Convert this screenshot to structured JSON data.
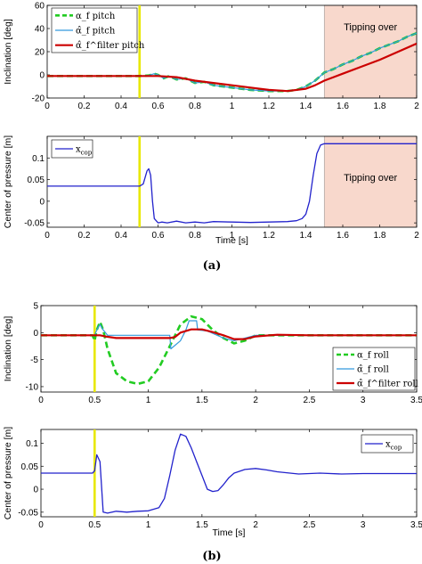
{
  "chart_data": [
    {
      "id": "a_top",
      "type": "line",
      "ylabel": "Inclination [deg]",
      "xlim": [
        0,
        2
      ],
      "ylim": [
        -20,
        60
      ],
      "xticks": [
        "0",
        "0.2",
        "0.4",
        "0.6",
        "0.8",
        "1",
        "1.2",
        "1.4",
        "1.6",
        "1.8",
        "2"
      ],
      "xtick_values": [
        0,
        0.2,
        0.4,
        0.6,
        0.8,
        1,
        1.2,
        1.4,
        1.6,
        1.8,
        2
      ],
      "yticks": [
        "-20",
        "0",
        "20",
        "40",
        "60"
      ],
      "ytick_values": [
        -20,
        0,
        20,
        40,
        60
      ],
      "vline": 0.5,
      "shaded": [
        1.5,
        2
      ],
      "annotation": "Tipping over",
      "legend": [
        {
          "label": "α_f pitch",
          "color": "#22cc22",
          "style": "dashed"
        },
        {
          "label": "α̂_f pitch",
          "color": "#3399dd",
          "style": "solid"
        },
        {
          "label": "α̂_f^filter pitch",
          "color": "#cc0000",
          "style": "solid"
        }
      ],
      "series": [
        {
          "color": "#22cc22",
          "dash": "7,4",
          "width": 2.6,
          "x": [
            0,
            0.5,
            0.55,
            0.58,
            0.6,
            0.63,
            0.66,
            0.7,
            0.75,
            0.8,
            0.85,
            0.9,
            1.0,
            1.1,
            1.2,
            1.3,
            1.35,
            1.4,
            1.45,
            1.5,
            1.55,
            1.6,
            1.65,
            1.7,
            1.75,
            1.8,
            1.85,
            1.9,
            1.95,
            2.0
          ],
          "y": [
            -1,
            -1,
            -0.5,
            1,
            0,
            -3,
            -1,
            -4,
            -3,
            -7,
            -6,
            -9,
            -11,
            -13,
            -14,
            -14,
            -13,
            -10,
            -5,
            2,
            5,
            9,
            12,
            16,
            19,
            23,
            26,
            29,
            33,
            36
          ]
        },
        {
          "color": "#3399dd",
          "dash": "",
          "width": 1.2,
          "x": [
            0,
            0.5,
            0.55,
            0.58,
            0.6,
            0.63,
            0.66,
            0.7,
            0.75,
            0.8,
            0.85,
            0.9,
            1.0,
            1.1,
            1.2,
            1.3,
            1.35,
            1.4,
            1.45,
            1.5,
            1.55,
            1.6,
            1.65,
            1.7,
            1.75,
            1.8,
            1.85,
            1.9,
            1.95,
            2.0
          ],
          "y": [
            -1,
            -1,
            -0.5,
            1,
            0,
            -3,
            -1,
            -4,
            -3,
            -7,
            -6,
            -9,
            -11,
            -13,
            -14,
            -14,
            -13,
            -10,
            -5,
            2,
            5,
            9,
            12,
            16,
            19,
            23,
            26,
            29,
            33,
            36
          ]
        },
        {
          "color": "#cc0000",
          "dash": "",
          "width": 2.2,
          "x": [
            0,
            0.55,
            0.6,
            0.7,
            0.8,
            0.9,
            1.0,
            1.1,
            1.2,
            1.3,
            1.4,
            1.45,
            1.5,
            1.55,
            1.6,
            1.7,
            1.8,
            1.9,
            2.0
          ],
          "y": [
            -1,
            -1,
            -1,
            -2,
            -5,
            -7,
            -9,
            -11,
            -13,
            -14,
            -12,
            -9,
            -5,
            -2,
            1,
            7,
            13,
            20,
            27
          ]
        }
      ]
    },
    {
      "id": "a_bottom",
      "type": "line",
      "ylabel": "Center of pressure [m]",
      "xlabel": "Time [s]",
      "xlim": [
        0,
        2
      ],
      "ylim": [
        -0.06,
        0.15
      ],
      "xticks": [
        "0",
        "0.2",
        "0.4",
        "0.6",
        "0.8",
        "1",
        "1.2",
        "1.4",
        "1.6",
        "1.8",
        "2"
      ],
      "xtick_values": [
        0,
        0.2,
        0.4,
        0.6,
        0.8,
        1,
        1.2,
        1.4,
        1.6,
        1.8,
        2
      ],
      "yticks": [
        "-0.05",
        "0",
        "0.05",
        "0.1"
      ],
      "ytick_values": [
        -0.05,
        0,
        0.05,
        0.1
      ],
      "vline": 0.5,
      "shaded": [
        1.5,
        2
      ],
      "annotation": "Tipping over",
      "legend": [
        {
          "label": "x",
          "sub": "cop",
          "color": "#2222cc",
          "style": "solid"
        }
      ],
      "series": [
        {
          "color": "#2222cc",
          "dash": "",
          "width": 1.3,
          "x": [
            0,
            0.5,
            0.52,
            0.54,
            0.55,
            0.56,
            0.57,
            0.58,
            0.6,
            0.62,
            0.65,
            0.7,
            0.75,
            0.8,
            0.85,
            0.9,
            1.0,
            1.1,
            1.2,
            1.3,
            1.35,
            1.38,
            1.4,
            1.42,
            1.44,
            1.46,
            1.48,
            1.5,
            1.6,
            1.8,
            2.0
          ],
          "y": [
            0.035,
            0.035,
            0.04,
            0.07,
            0.075,
            0.06,
            0.0,
            -0.04,
            -0.05,
            -0.048,
            -0.05,
            -0.046,
            -0.05,
            -0.048,
            -0.05,
            -0.047,
            -0.048,
            -0.049,
            -0.048,
            -0.047,
            -0.045,
            -0.04,
            -0.03,
            0.0,
            0.06,
            0.11,
            0.13,
            0.133,
            0.133,
            0.133,
            0.133
          ]
        }
      ]
    },
    {
      "id": "b_top",
      "type": "line",
      "ylabel": "Inclination [deg]",
      "xlim": [
        0,
        3.5
      ],
      "ylim": [
        -11,
        5
      ],
      "xticks": [
        "0",
        "0.5",
        "1",
        "1.5",
        "2",
        "2.5",
        "3",
        "3.5"
      ],
      "xtick_values": [
        0,
        0.5,
        1,
        1.5,
        2,
        2.5,
        3,
        3.5
      ],
      "yticks": [
        "-10",
        "-5",
        "0",
        "5"
      ],
      "ytick_values": [
        -10,
        -5,
        0,
        5
      ],
      "vline": 0.5,
      "legend": [
        {
          "label": "α_f roll",
          "color": "#22cc22",
          "style": "dashed"
        },
        {
          "label": "α̂_f roll",
          "color": "#3399dd",
          "style": "solid"
        },
        {
          "label": "α̂_f^filter roll",
          "color": "#cc0000",
          "style": "solid"
        }
      ],
      "series": [
        {
          "color": "#22cc22",
          "dash": "7,4",
          "width": 2.6,
          "x": [
            0,
            0.48,
            0.5,
            0.52,
            0.55,
            0.58,
            0.62,
            0.7,
            0.8,
            0.9,
            1.0,
            1.1,
            1.2,
            1.3,
            1.4,
            1.5,
            1.6,
            1.7,
            1.8,
            1.9,
            2.0,
            2.2,
            2.5,
            3.0,
            3.5
          ],
          "y": [
            -0.5,
            -0.5,
            -1.5,
            0.5,
            2,
            0.5,
            -3,
            -7.5,
            -9,
            -9.5,
            -9,
            -6.5,
            -2.5,
            1.5,
            3,
            2.5,
            0.5,
            -1,
            -2,
            -1.5,
            -0.5,
            -0.5,
            -0.5,
            -0.5,
            -0.5
          ]
        },
        {
          "color": "#3399dd",
          "dash": "",
          "width": 1.2,
          "x": [
            0,
            0.5,
            0.52,
            0.55,
            0.58,
            0.62,
            1.2,
            1.21,
            1.3,
            1.35,
            1.38,
            1.45,
            1.46,
            1.55,
            1.7,
            1.8,
            1.9,
            2.0,
            2.5,
            3.0,
            3.5
          ],
          "y": [
            -0.5,
            -0.5,
            0.5,
            1.5,
            0.5,
            -0.5,
            -0.5,
            -3,
            -1.5,
            0.5,
            2.2,
            2.2,
            0.5,
            0.3,
            -1,
            -1.5,
            -1,
            -0.5,
            -0.5,
            -0.5,
            -0.5
          ]
        },
        {
          "color": "#cc0000",
          "dash": "",
          "width": 2.2,
          "x": [
            0,
            0.55,
            0.6,
            0.7,
            0.9,
            1.1,
            1.2,
            1.25,
            1.3,
            1.4,
            1.5,
            1.6,
            1.7,
            1.8,
            1.9,
            2.0,
            2.2,
            2.5,
            3.0,
            3.5
          ],
          "y": [
            -0.5,
            -0.5,
            -0.7,
            -1,
            -1,
            -1,
            -1,
            -0.8,
            0,
            0.6,
            0.6,
            0.1,
            -0.5,
            -1.2,
            -1.2,
            -0.7,
            -0.4,
            -0.5,
            -0.5,
            -0.5
          ]
        }
      ]
    },
    {
      "id": "b_bottom",
      "type": "line",
      "ylabel": "Center of pressure [m]",
      "xlabel": "Time [s]",
      "xlim": [
        0,
        3.5
      ],
      "ylim": [
        -0.06,
        0.13
      ],
      "xticks": [
        "0",
        "0.5",
        "1",
        "1.5",
        "2",
        "2.5",
        "3",
        "3.5"
      ],
      "xtick_values": [
        0,
        0.5,
        1,
        1.5,
        2,
        2.5,
        3,
        3.5
      ],
      "yticks": [
        "-0.05",
        "0",
        "0.05",
        "0.1"
      ],
      "ytick_values": [
        -0.05,
        0,
        0.05,
        0.1
      ],
      "vline": 0.5,
      "legend": [
        {
          "label": "x",
          "sub": "cop",
          "color": "#2222cc",
          "style": "solid"
        }
      ],
      "series": [
        {
          "color": "#2222cc",
          "dash": "",
          "width": 1.3,
          "x": [
            0,
            0.48,
            0.5,
            0.52,
            0.55,
            0.58,
            0.62,
            0.7,
            0.8,
            0.9,
            1.0,
            1.1,
            1.15,
            1.2,
            1.25,
            1.3,
            1.35,
            1.4,
            1.45,
            1.5,
            1.55,
            1.6,
            1.65,
            1.7,
            1.75,
            1.8,
            1.9,
            2.0,
            2.1,
            2.2,
            2.4,
            2.6,
            2.8,
            3.0,
            3.5
          ],
          "y": [
            0.035,
            0.035,
            0.04,
            0.075,
            0.06,
            -0.05,
            -0.052,
            -0.048,
            -0.05,
            -0.048,
            -0.047,
            -0.04,
            -0.02,
            0.03,
            0.085,
            0.12,
            0.115,
            0.09,
            0.06,
            0.03,
            0.0,
            -0.005,
            -0.003,
            0.01,
            0.025,
            0.035,
            0.043,
            0.045,
            0.042,
            0.038,
            0.033,
            0.035,
            0.033,
            0.034,
            0.034
          ]
        }
      ]
    }
  ],
  "panel_labels": [
    "(a)",
    "(b)"
  ],
  "colors": {
    "vline": "#e8e800",
    "shade": "#f8d8cc",
    "axis": "#000000"
  }
}
